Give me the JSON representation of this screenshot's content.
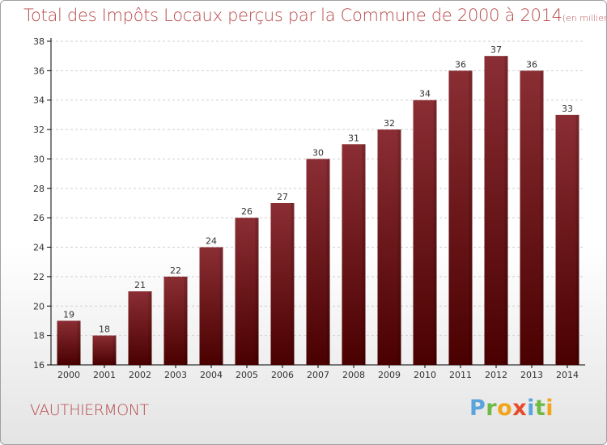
{
  "colors": {
    "title": "#b84a4a",
    "bar_top": "#8a2e34",
    "bar_bottom": "#4a0000",
    "grid": "#cfcfcf",
    "axis": "#000000"
  },
  "chart_data": {
    "type": "bar",
    "title": "Total des Impôts Locaux perçus par la Commune de 2000 à 2014",
    "subtitle": "(en milliers d'€)",
    "xlabel": "",
    "ylabel": "",
    "categories": [
      "2000",
      "2001",
      "2002",
      "2003",
      "2004",
      "2005",
      "2006",
      "2007",
      "2008",
      "2009",
      "2010",
      "2011",
      "2012",
      "2013",
      "2014"
    ],
    "values": [
      19,
      18,
      21,
      22,
      24,
      26,
      27,
      30,
      31,
      32,
      34,
      36,
      37,
      36,
      33
    ],
    "ylim": [
      16,
      38
    ],
    "yticks": [
      "16",
      "18",
      "20",
      "22",
      "24",
      "26",
      "28",
      "30",
      "32",
      "34",
      "36",
      "38"
    ],
    "grid": true,
    "grid_style": "dashed horizontal"
  },
  "footer": {
    "commune": "VAUTHIERMONT",
    "brand_letters": [
      {
        "char": "P",
        "color": "#5aa4dc"
      },
      {
        "char": "r",
        "color": "#6dbb45"
      },
      {
        "char": "o",
        "color": "#f3a418"
      },
      {
        "char": "x",
        "color": "#e84b2c"
      },
      {
        "char": "i",
        "color": "#5aa4dc"
      },
      {
        "char": "t",
        "color": "#6dbb45"
      },
      {
        "char": "i",
        "color": "#f3a418"
      }
    ]
  }
}
